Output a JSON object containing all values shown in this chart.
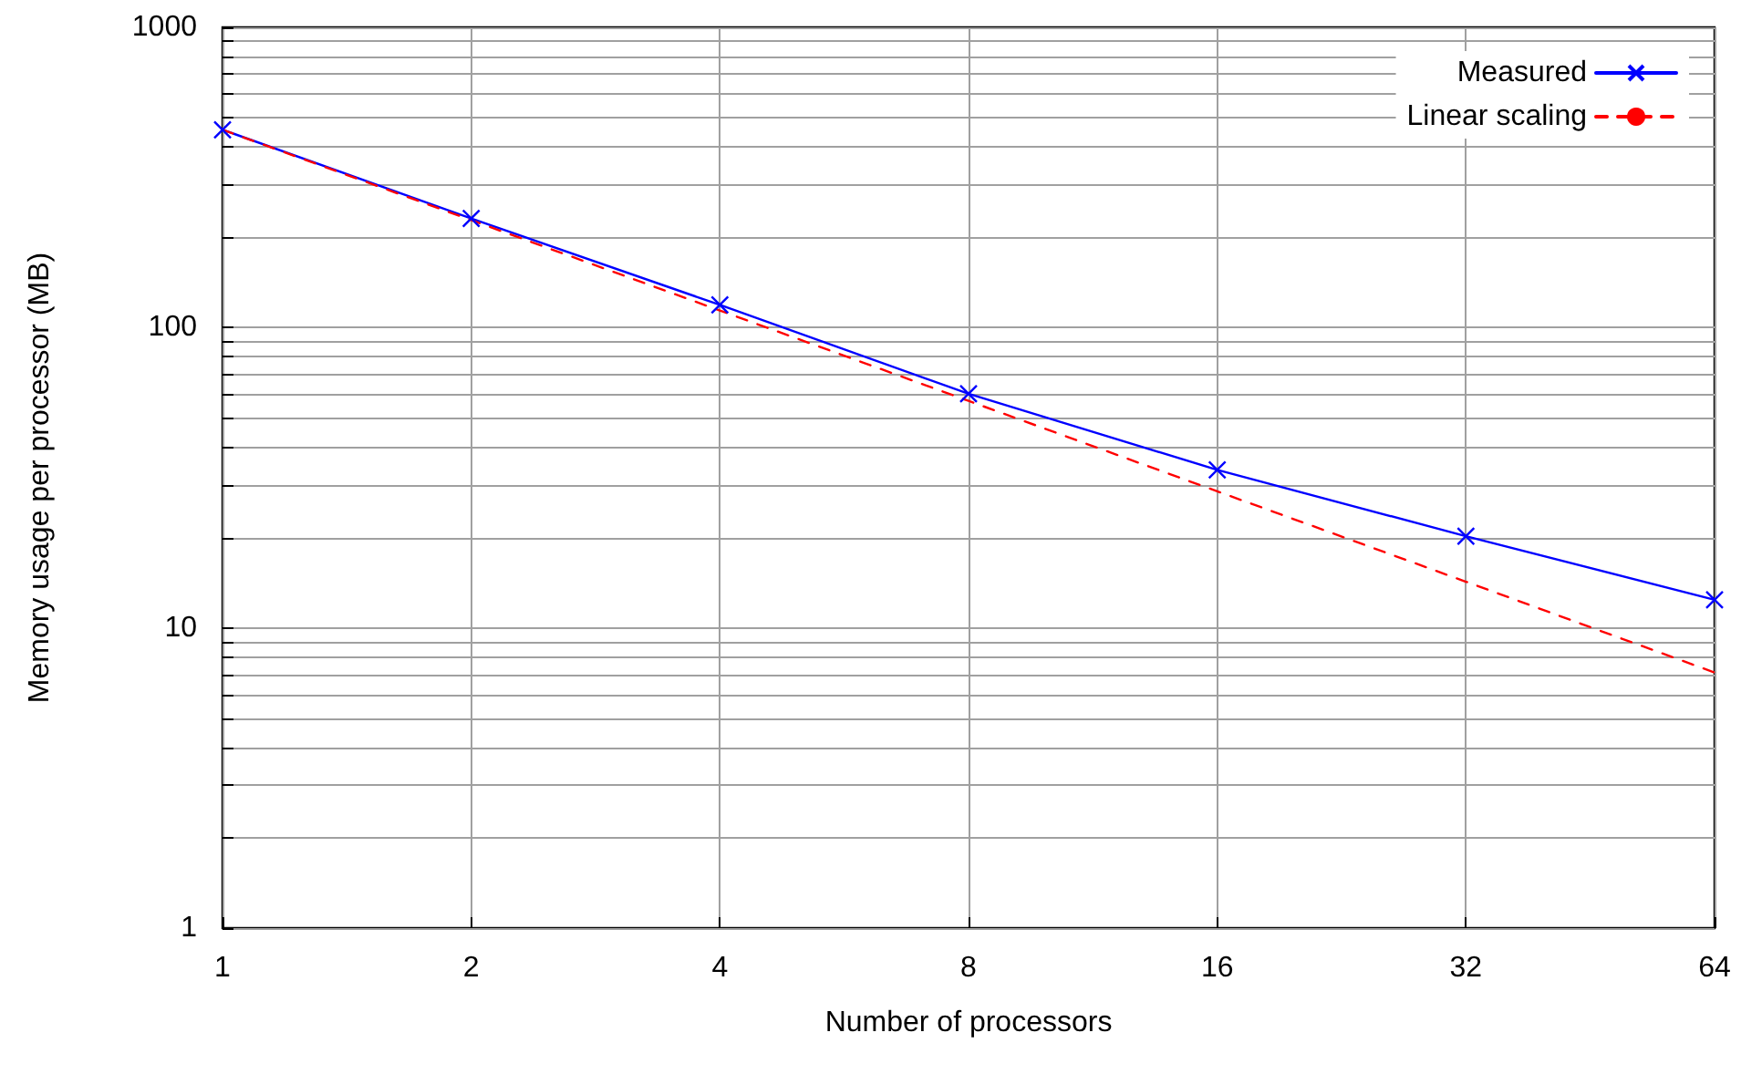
{
  "chart_data": {
    "type": "line",
    "xlabel": "Number of processors",
    "ylabel": "Memory usage per processor (MB)",
    "x": [
      1,
      2,
      4,
      8,
      16,
      32,
      64
    ],
    "series": [
      {
        "name": "Measured",
        "color": "#0000ff",
        "values": [
          456,
          231,
          119,
          60.2,
          33.6,
          20.2,
          12.4
        ],
        "marker": "cross",
        "line_style": "solid"
      },
      {
        "name": "Linear scaling",
        "color": "#ff0000",
        "values": [
          456,
          228,
          114,
          57,
          28.5,
          14.25,
          7.1
        ],
        "marker": "none",
        "line_style": "dashed"
      }
    ],
    "log": "xy",
    "xlim": [
      1,
      64
    ],
    "xticks": [
      1,
      2,
      4,
      8,
      16,
      32,
      64
    ],
    "ylim": [
      1,
      1000
    ],
    "yticks": [
      1,
      {
        "value": 2,
        "label": null
      },
      {
        "value": 3,
        "label": null
      },
      {
        "value": 4,
        "label": null
      },
      {
        "value": 5,
        "label": null
      },
      {
        "value": 6,
        "label": null
      },
      {
        "value": 7,
        "label": null
      },
      {
        "value": 8,
        "label": null
      },
      {
        "value": 9,
        "label": null
      },
      10,
      {
        "value": 20,
        "label": null
      },
      {
        "value": 30,
        "label": null
      },
      {
        "value": 40,
        "label": null
      },
      {
        "value": 50,
        "label": null
      },
      {
        "value": 60,
        "label": null
      },
      {
        "value": 70,
        "label": null
      },
      {
        "value": 80,
        "label": null
      },
      {
        "value": 90,
        "label": null
      },
      100,
      {
        "value": 200,
        "label": null
      },
      {
        "value": 300,
        "label": null
      },
      {
        "value": 400,
        "label": null
      },
      {
        "value": 500,
        "label": null
      },
      {
        "value": 600,
        "label": null
      },
      {
        "value": 700,
        "label": null
      },
      {
        "value": 800,
        "label": null
      },
      {
        "value": 900,
        "label": null
      },
      1000
    ],
    "grid": true,
    "legend": "top right"
  }
}
